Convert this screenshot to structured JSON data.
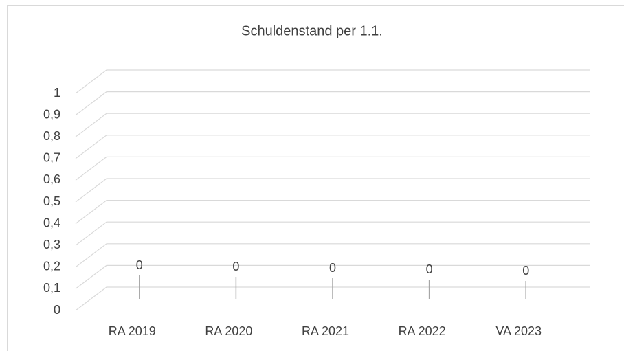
{
  "chart_data": {
    "type": "bar3d",
    "title": "Schuldenstand per 1.1.",
    "categories": [
      "RA 2019",
      "RA 2020",
      "RA 2021",
      "RA 2022",
      "VA 2023"
    ],
    "values": [
      0,
      0,
      0,
      0,
      0
    ],
    "color": "#2f5597",
    "ylim": [
      0,
      1
    ],
    "yticks": [
      0,
      {
        "value": 0.1,
        "label": "0,1"
      },
      {
        "value": 0.2,
        "label": "0,2"
      },
      {
        "value": 0.3,
        "label": "0,3"
      },
      {
        "value": 0.4,
        "label": "0,4"
      },
      {
        "value": 0.5,
        "label": "0,5"
      },
      {
        "value": 0.6,
        "label": "0,6"
      },
      {
        "value": 0.7,
        "label": "0,7"
      },
      {
        "value": 0.8,
        "label": "0,8"
      },
      {
        "value": 0.9,
        "label": "0,9"
      },
      1
    ],
    "grid": true,
    "data_labels": true
  }
}
